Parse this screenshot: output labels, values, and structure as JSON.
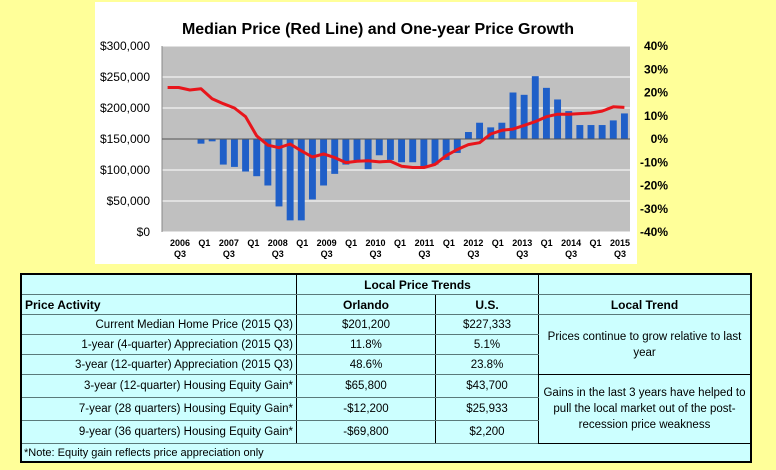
{
  "chart_data": {
    "type": "bar+line",
    "title": "Median Price (Red Line) and One-year Price Growth",
    "y_left": {
      "ticks": [
        "$300,000",
        "$250,000",
        "$200,000",
        "$150,000",
        "$100,000",
        "$50,000",
        "$0"
      ],
      "range": [
        0,
        300000
      ]
    },
    "y_right": {
      "ticks": [
        "40%",
        "30%",
        "20%",
        "10%",
        "0%",
        "-10%",
        "-20%",
        "-30%",
        "-40%"
      ],
      "range": [
        -40,
        40
      ]
    },
    "x_labels": [
      {
        "top": "2006",
        "bottom": "Q3"
      },
      {
        "top": "Q1",
        "bottom": ""
      },
      {
        "top": "2007",
        "bottom": "Q3"
      },
      {
        "top": "Q1",
        "bottom": ""
      },
      {
        "top": "2008",
        "bottom": "Q3"
      },
      {
        "top": "Q1",
        "bottom": ""
      },
      {
        "top": "2009",
        "bottom": "Q3"
      },
      {
        "top": "Q1",
        "bottom": ""
      },
      {
        "top": "2010",
        "bottom": "Q3"
      },
      {
        "top": "Q1",
        "bottom": ""
      },
      {
        "top": "2011",
        "bottom": "Q3"
      },
      {
        "top": "Q1",
        "bottom": ""
      },
      {
        "top": "2012",
        "bottom": "Q3"
      },
      {
        "top": "Q1",
        "bottom": ""
      },
      {
        "top": "2013",
        "bottom": "Q3"
      },
      {
        "top": "Q1",
        "bottom": ""
      },
      {
        "top": "2014",
        "bottom": "Q3"
      },
      {
        "top": "Q1",
        "bottom": ""
      },
      {
        "top": "2015",
        "bottom": "Q3"
      }
    ],
    "series": [
      {
        "name": "One-year Price Growth",
        "type": "bar",
        "color": "#1f5fc8",
        "values": [
          0,
          0,
          0,
          -2,
          -1,
          -11,
          -12,
          -14,
          -16,
          -20,
          -29,
          -35,
          -35,
          -26,
          -20,
          -15,
          -11,
          -10,
          -13,
          -7,
          -9,
          -10,
          -10,
          -12,
          -11,
          -9,
          -6,
          3,
          7,
          5,
          7,
          20,
          19,
          27,
          22,
          17,
          12,
          6,
          6,
          6,
          8,
          11
        ]
      },
      {
        "name": "Median Price (Red Line)",
        "type": "line",
        "color": "#e8151b",
        "values": [
          233000,
          233000,
          229000,
          231000,
          215000,
          207000,
          200000,
          186000,
          155000,
          140000,
          136000,
          142000,
          131000,
          121000,
          126000,
          120000,
          112000,
          114000,
          115000,
          113000,
          114000,
          106000,
          104000,
          104000,
          109000,
          123000,
          133000,
          141000,
          144000,
          158000,
          164000,
          166000,
          172000,
          178000,
          186000,
          190000,
          190000,
          191000,
          192000,
          195000,
          202000,
          201000
        ]
      }
    ],
    "grid": true
  },
  "table": {
    "title": "Local Price Trends",
    "header_label": "Price Activity",
    "col_orlando": "Orlando",
    "col_us": "U.S.",
    "col_trend": "Local Trend",
    "rows": [
      {
        "label": "Current Median Home Price (2015 Q3)",
        "orlando": "$201,200",
        "us": "$227,333"
      },
      {
        "label": "1-year (4-quarter) Appreciation (2015 Q3)",
        "orlando": "11.8%",
        "us": "5.1%"
      },
      {
        "label": "3-year (12-quarter) Appreciation (2015 Q3)",
        "orlando": "48.6%",
        "us": "23.8%"
      },
      {
        "label": "3-year (12-quarter) Housing Equity Gain*",
        "orlando": "$65,800",
        "us": "$43,700"
      },
      {
        "label": "7-year (28 quarters) Housing Equity Gain*",
        "orlando": "-$12,200",
        "us": "$25,933"
      },
      {
        "label": "9-year (36 quarters) Housing Equity Gain*",
        "orlando": "-$69,800",
        "us": "$2,200"
      }
    ],
    "trend_text_1": "Prices continue to grow relative to last year",
    "trend_text_2": "Gains in the last 3 years have helped to pull the local market out of the post-recession price weakness",
    "note": "*Note: Equity gain reflects price appreciation only"
  }
}
